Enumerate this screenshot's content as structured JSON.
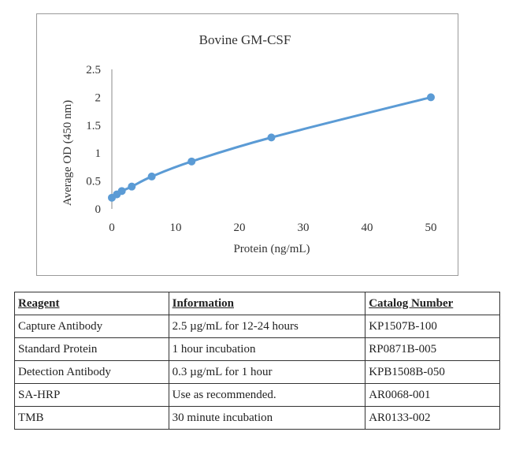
{
  "chart_data": {
    "type": "scatter",
    "title": "Bovine GM-CSF",
    "xlabel": "Protein (ng/mL)",
    "ylabel": "Average OD (450 nm)",
    "xlim": [
      0,
      50
    ],
    "ylim": [
      0,
      2.5
    ],
    "x_ticks": [
      "0",
      "10",
      "20",
      "30",
      "40",
      "50"
    ],
    "y_ticks": [
      "0",
      "0.5",
      "1",
      "1.5",
      "2",
      "2.5"
    ],
    "grid": false,
    "legend": "none",
    "series_color": "#5b9bd5",
    "x": [
      0,
      0.78,
      1.56,
      3.12,
      6.25,
      12.5,
      25,
      50
    ],
    "y": [
      0.2,
      0.26,
      0.32,
      0.4,
      0.58,
      0.85,
      1.28,
      2.0
    ]
  },
  "table": {
    "headers": [
      "Reagent",
      "Information",
      "Catalog Number"
    ],
    "rows": [
      [
        "Capture Antibody",
        "2.5 µg/mL for 12-24 hours",
        "KP1507B-100"
      ],
      [
        "Standard Protein",
        "1 hour incubation",
        "RP0871B-005"
      ],
      [
        "Detection Antibody",
        "0.3 µg/mL for 1 hour",
        "KPB1508B-050"
      ],
      [
        "SA-HRP",
        "Use as recommended.",
        "AR0068-001"
      ],
      [
        "TMB",
        "30 minute incubation",
        "AR0133-002"
      ]
    ]
  }
}
